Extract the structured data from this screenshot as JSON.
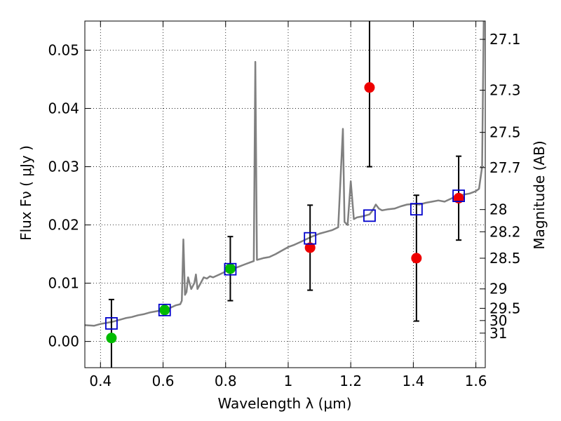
{
  "chart_data": {
    "type": "scatter",
    "xlabel": "Wavelength  λ (μm)",
    "ylabel": "Flux  Fν  ( μJy )",
    "y2label": "Magnitude (AB)",
    "xlim": [
      0.35,
      1.63
    ],
    "ylim": [
      -0.0045,
      0.055
    ],
    "grid": true,
    "x_ticks": [
      0.4,
      0.6,
      0.8,
      1.0,
      1.2,
      1.4,
      1.6
    ],
    "x_tick_labels": [
      "0.4",
      "0.6",
      "0.8",
      "1",
      "1.2",
      "1.4",
      "1.6"
    ],
    "y_ticks": [
      0.0,
      0.01,
      0.02,
      0.03,
      0.04,
      0.05
    ],
    "y_tick_labels": [
      "0.00",
      "0.01",
      "0.02",
      "0.03",
      "0.04",
      "0.05"
    ],
    "mag_ticks": [
      {
        "label": "27.1",
        "flux": 0.05186
      },
      {
        "label": "27.3",
        "flux": 0.04313
      },
      {
        "label": "27.5",
        "flux": 0.03589
      },
      {
        "label": "27.7",
        "flux": 0.02985
      },
      {
        "label": "28",
        "flux": 0.02264
      },
      {
        "label": "28.2",
        "flux": 0.01883
      },
      {
        "label": "28.5",
        "flux": 0.01429
      },
      {
        "label": "29",
        "flux": 0.00902
      },
      {
        "label": "29.5",
        "flux": 0.00569
      },
      {
        "label": "30",
        "flux": 0.00359
      },
      {
        "label": "31",
        "flux": 0.00143
      }
    ],
    "series": [
      {
        "color": "#808080",
        "style": "line",
        "points": [
          [
            0.35,
            0.0028
          ],
          [
            0.38,
            0.0027
          ],
          [
            0.4,
            0.003
          ],
          [
            0.42,
            0.0032
          ],
          [
            0.44,
            0.0034
          ],
          [
            0.46,
            0.0037
          ],
          [
            0.48,
            0.004
          ],
          [
            0.5,
            0.0042
          ],
          [
            0.52,
            0.0045
          ],
          [
            0.54,
            0.0047
          ],
          [
            0.56,
            0.005
          ],
          [
            0.58,
            0.0052
          ],
          [
            0.6,
            0.0054
          ],
          [
            0.62,
            0.0057
          ],
          [
            0.64,
            0.0062
          ],
          [
            0.655,
            0.0064
          ],
          [
            0.66,
            0.007
          ],
          [
            0.665,
            0.0175
          ],
          [
            0.67,
            0.008
          ],
          [
            0.675,
            0.0085
          ],
          [
            0.68,
            0.011
          ],
          [
            0.69,
            0.009
          ],
          [
            0.7,
            0.01
          ],
          [
            0.705,
            0.0115
          ],
          [
            0.71,
            0.009
          ],
          [
            0.72,
            0.01
          ],
          [
            0.73,
            0.011
          ],
          [
            0.74,
            0.0108
          ],
          [
            0.75,
            0.0112
          ],
          [
            0.76,
            0.011
          ],
          [
            0.78,
            0.0115
          ],
          [
            0.8,
            0.012
          ],
          [
            0.82,
            0.0124
          ],
          [
            0.84,
            0.0128
          ],
          [
            0.86,
            0.0132
          ],
          [
            0.88,
            0.0136
          ],
          [
            0.89,
            0.0138
          ],
          [
            0.895,
            0.048
          ],
          [
            0.9,
            0.014
          ],
          [
            0.92,
            0.0143
          ],
          [
            0.94,
            0.0145
          ],
          [
            0.96,
            0.015
          ],
          [
            0.98,
            0.0156
          ],
          [
            1.0,
            0.0162
          ],
          [
            1.02,
            0.0166
          ],
          [
            1.04,
            0.0171
          ],
          [
            1.06,
            0.0176
          ],
          [
            1.08,
            0.0181
          ],
          [
            1.1,
            0.0185
          ],
          [
            1.12,
            0.0188
          ],
          [
            1.14,
            0.0191
          ],
          [
            1.16,
            0.0196
          ],
          [
            1.175,
            0.0365
          ],
          [
            1.18,
            0.0205
          ],
          [
            1.19,
            0.02
          ],
          [
            1.2,
            0.0275
          ],
          [
            1.21,
            0.021
          ],
          [
            1.22,
            0.0213
          ],
          [
            1.24,
            0.0215
          ],
          [
            1.26,
            0.0218
          ],
          [
            1.27,
            0.0225
          ],
          [
            1.28,
            0.0235
          ],
          [
            1.29,
            0.0228
          ],
          [
            1.3,
            0.0225
          ],
          [
            1.32,
            0.0227
          ],
          [
            1.34,
            0.0228
          ],
          [
            1.36,
            0.0232
          ],
          [
            1.38,
            0.0235
          ],
          [
            1.4,
            0.0236
          ],
          [
            1.42,
            0.0235
          ],
          [
            1.44,
            0.0238
          ],
          [
            1.46,
            0.024
          ],
          [
            1.48,
            0.0242
          ],
          [
            1.5,
            0.024
          ],
          [
            1.52,
            0.0245
          ],
          [
            1.54,
            0.025
          ],
          [
            1.56,
            0.0252
          ],
          [
            1.58,
            0.0254
          ],
          [
            1.6,
            0.0258
          ],
          [
            1.61,
            0.0262
          ],
          [
            1.62,
            0.03
          ],
          [
            1.625,
            0.055
          ]
        ]
      },
      {
        "color": "#0000cc",
        "style": "open-square",
        "points": [
          [
            0.435,
            0.0031
          ],
          [
            0.605,
            0.0054
          ],
          [
            0.815,
            0.0124
          ],
          [
            1.07,
            0.0177
          ],
          [
            1.26,
            0.0216
          ],
          [
            1.41,
            0.0227
          ],
          [
            1.545,
            0.025
          ]
        ]
      },
      {
        "color": "#00bb00",
        "style": "circle",
        "points": [
          [
            0.435,
            0.0006
          ],
          [
            0.605,
            0.0054
          ],
          [
            0.815,
            0.0125
          ]
        ],
        "errors": [
          0.0066,
          null,
          0.0055
        ]
      },
      {
        "color": "#ee0000",
        "style": "circle",
        "points": [
          [
            1.07,
            0.0161
          ],
          [
            1.26,
            0.0436
          ],
          [
            1.41,
            0.0143
          ],
          [
            1.545,
            0.0246
          ]
        ],
        "errors": [
          0.0073,
          0.0136,
          0.0108,
          0.0072
        ]
      }
    ]
  }
}
